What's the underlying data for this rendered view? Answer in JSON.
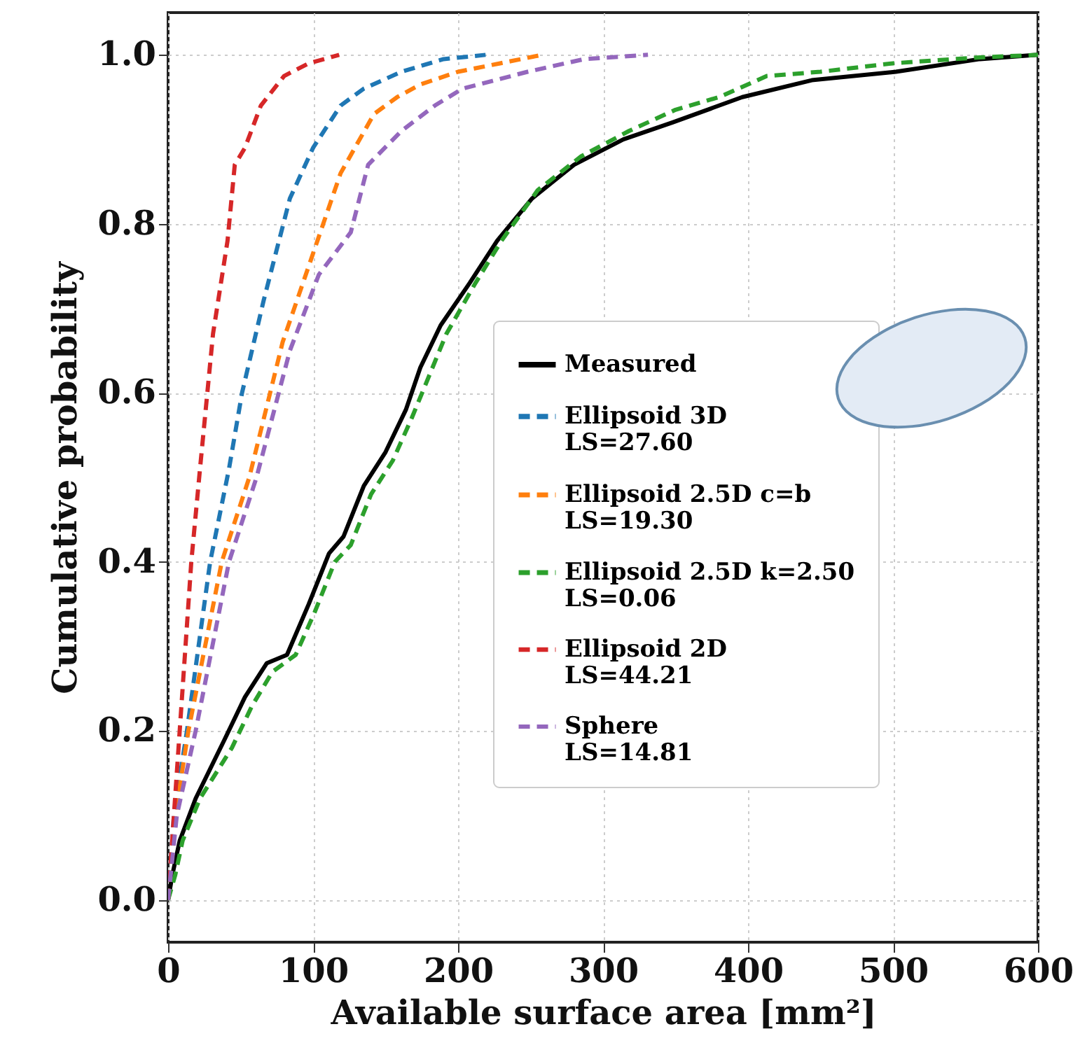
{
  "chart_data": {
    "type": "line",
    "xlabel": "Available surface area [mm²]",
    "ylabel": "Cumulative probability",
    "xlim": [
      0,
      600
    ],
    "ylim": [
      -0.05,
      1.05
    ],
    "xticks": [
      0,
      100,
      200,
      300,
      400,
      500,
      600
    ],
    "yticks": [
      {
        "value": 0,
        "label": "0.0"
      },
      0.2,
      0.4,
      0.6,
      0.8,
      {
        "value": 1,
        "label": "1.0"
      }
    ],
    "grid": true,
    "legend": "right",
    "series": [
      {
        "name": "Measured",
        "color": "#000000",
        "line_style": "solid",
        "x": [
          0,
          3,
          8,
          19,
          39,
          53,
          68,
          82,
          97,
          111,
          121,
          135,
          150,
          164,
          174,
          188,
          208,
          227,
          251,
          280,
          314,
          348,
          396,
          444,
          502,
          560,
          600
        ],
        "values": [
          0,
          0.03,
          0.07,
          0.12,
          0.19,
          0.24,
          0.28,
          0.29,
          0.35,
          0.41,
          0.43,
          0.49,
          0.53,
          0.58,
          0.63,
          0.68,
          0.73,
          0.78,
          0.83,
          0.87,
          0.9,
          0.92,
          0.95,
          0.97,
          0.98,
          0.995,
          1.0
        ]
      },
      {
        "name": "Ellipsoid 3D\nLS=27.60",
        "color": "#1f77b4",
        "line_style": "dashed",
        "x": [
          0,
          4,
          13,
          29,
          42,
          51,
          66,
          84,
          100,
          119,
          135,
          161,
          190,
          219
        ],
        "values": [
          0,
          0.1,
          0.2,
          0.4,
          0.51,
          0.6,
          0.71,
          0.83,
          0.89,
          0.94,
          0.96,
          0.98,
          0.995,
          1.0
        ]
      },
      {
        "name": "Ellipsoid 2.5D c=b\nLS=19.30",
        "color": "#ff7f0e",
        "line_style": "dashed",
        "x": [
          0,
          5,
          14,
          37,
          56,
          79,
          101,
          119,
          142,
          158,
          174,
          200,
          229,
          258
        ],
        "values": [
          0,
          0.1,
          0.2,
          0.4,
          0.5,
          0.66,
          0.77,
          0.86,
          0.93,
          0.95,
          0.965,
          0.98,
          0.99,
          1.0
        ]
      },
      {
        "name": "Ellipsoid 2.5D k=2.50\nLS=0.06",
        "color": "#2ca02c",
        "line_style": "dashed",
        "x": [
          0,
          5,
          10,
          22,
          44,
          58,
          72,
          88,
          101,
          115,
          126,
          140,
          155,
          168,
          180,
          192,
          212,
          230,
          255,
          285,
          318,
          350,
          380,
          413,
          450,
          500,
          560,
          600
        ],
        "values": [
          0,
          0.03,
          0.07,
          0.12,
          0.18,
          0.23,
          0.27,
          0.29,
          0.34,
          0.4,
          0.42,
          0.48,
          0.52,
          0.57,
          0.62,
          0.67,
          0.73,
          0.78,
          0.84,
          0.88,
          0.91,
          0.935,
          0.95,
          0.975,
          0.98,
          0.99,
          0.997,
          1.0
        ]
      },
      {
        "name": "Ellipsoid 2D\nLS=44.21",
        "color": "#d62728",
        "line_style": "dashed",
        "x": [
          0,
          4,
          8,
          16,
          22,
          31,
          41,
          46,
          53,
          64,
          80,
          97,
          118
        ],
        "values": [
          0,
          0.1,
          0.2,
          0.4,
          0.51,
          0.67,
          0.78,
          0.87,
          0.89,
          0.94,
          0.975,
          0.99,
          1.0
        ]
      },
      {
        "name": "Sphere\nLS=14.81",
        "color": "#9467bd",
        "line_style": "dashed",
        "x": [
          0,
          6,
          19,
          42,
          61,
          84,
          104,
          126,
          138,
          161,
          184,
          203,
          248,
          287,
          331
        ],
        "values": [
          0,
          0.1,
          0.2,
          0.4,
          0.5,
          0.65,
          0.74,
          0.79,
          0.87,
          0.91,
          0.94,
          0.96,
          0.98,
          0.995,
          1.0
        ]
      }
    ]
  }
}
